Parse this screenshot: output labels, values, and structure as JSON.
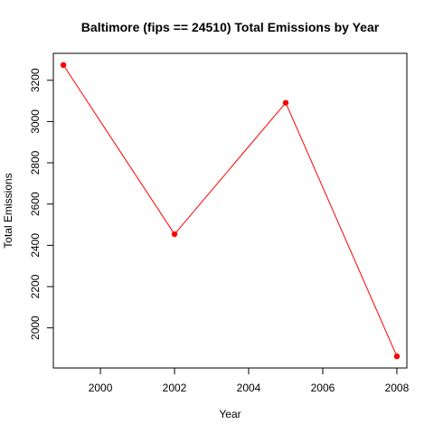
{
  "chart_data": {
    "type": "line",
    "title": "Baltimore (fips == 24510) Total Emissions by Year",
    "xlabel": "Year",
    "ylabel": "Total Emissions",
    "x": [
      1999,
      2002,
      2005,
      2008
    ],
    "series": [
      {
        "values": [
          3274,
          2454,
          3091,
          1862
        ],
        "color": "#ff0000"
      }
    ],
    "xlim": [
      1998.73,
      2008.27
    ],
    "ylim": [
      1805.5,
      3330.5
    ],
    "xticks": [
      2000,
      2002,
      2004,
      2006,
      2008
    ],
    "yticks": [
      2000,
      2200,
      2400,
      2600,
      2800,
      3000,
      3200
    ],
    "xtick_labels": [
      "2000",
      "2002",
      "2004",
      "2006",
      "2008"
    ],
    "ytick_labels": [
      "2000",
      "2200",
      "2400",
      "2600",
      "2800",
      "3000",
      "3200"
    ],
    "grid": false,
    "legend": "none",
    "marker": "filled-circle"
  }
}
